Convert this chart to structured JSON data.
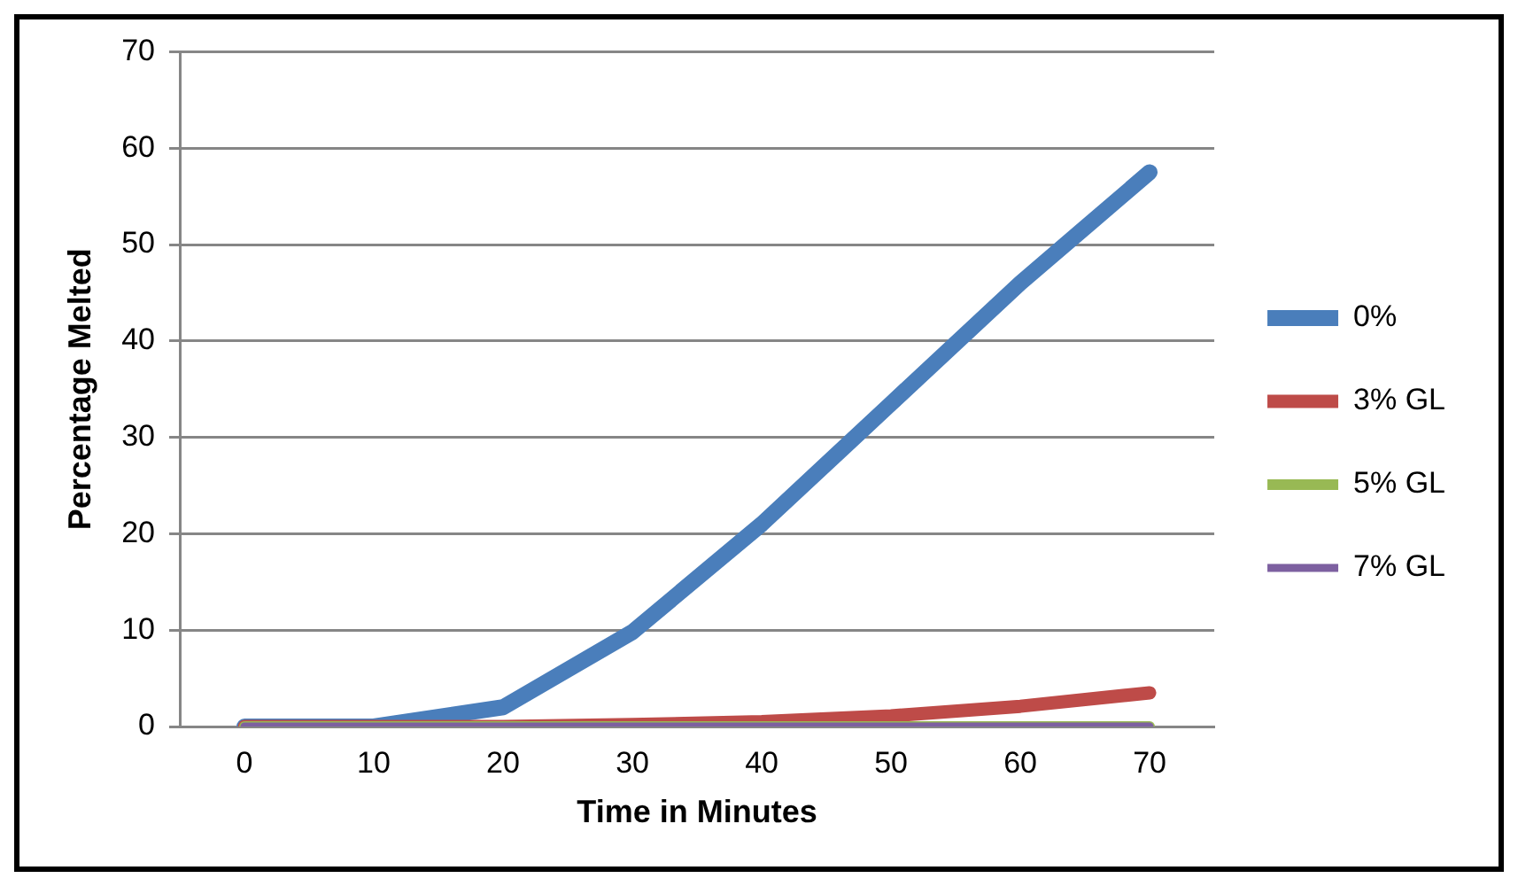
{
  "chart_data": {
    "type": "line",
    "xlabel": "Time in Minutes",
    "ylabel": "Percentage Melted",
    "categories": [
      "0",
      "10",
      "20",
      "30",
      "40",
      "50",
      "60",
      "70"
    ],
    "series": [
      {
        "name": "0%",
        "color": "#4a7ebb",
        "values": [
          0,
          0,
          2,
          9.8,
          21,
          33.5,
          46,
          57.5
        ]
      },
      {
        "name": "3% GL",
        "color": "#be4b48",
        "values": [
          0,
          0,
          0,
          0.2,
          0.5,
          1.1,
          2.1,
          3.5
        ]
      },
      {
        "name": "5% GL",
        "color": "#98b954",
        "values": [
          0,
          0,
          0,
          0,
          0,
          0,
          0,
          0
        ]
      },
      {
        "name": "7% GL",
        "color": "#7d60a0",
        "values": [
          0,
          0,
          0,
          0,
          0,
          0,
          0,
          0
        ]
      }
    ],
    "ylim": [
      0,
      70
    ],
    "yticks": [
      0,
      10,
      20,
      30,
      40,
      50,
      60,
      70
    ],
    "grid": "y",
    "legend": "right",
    "marker": "none",
    "line_style": "solid"
  }
}
